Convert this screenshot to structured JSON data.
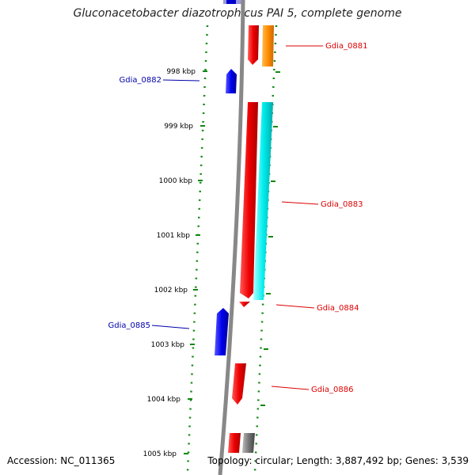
{
  "header": {
    "title": "Gluconacetobacter diazotrophicus PAI 5, complete genome"
  },
  "footer": {
    "accession": "Accession: NC_011365",
    "summary": "Topology: circular; Length: 3,887,492 bp; Genes: 3,539"
  },
  "scale": {
    "ticks": [
      "998 kbp",
      "999 kbp",
      "1000 kbp",
      "1001 kbp",
      "1002 kbp",
      "1003 kbp",
      "1004 kbp",
      "1005 kbp"
    ]
  },
  "genes": [
    {
      "name": "Gdia_0881",
      "strand": "reverse",
      "color": "#dd0000"
    },
    {
      "name": "Gdia_0882",
      "strand": "forward",
      "color": "#0000cc"
    },
    {
      "name": "Gdia_0883",
      "strand": "reverse",
      "color": "#dd0000"
    },
    {
      "name": "Gdia_0884",
      "strand": "reverse",
      "color": "#dd0000"
    },
    {
      "name": "Gdia_0885",
      "strand": "forward",
      "color": "#0000cc"
    },
    {
      "name": "Gdia_0886",
      "strand": "reverse",
      "color": "#dd0000"
    }
  ],
  "colors": {
    "backbone": "#888888",
    "tick_dots": "#118811",
    "orange_feature": "#ff8c00",
    "cyan_feature": "#00eeee",
    "grey_feature": "#777777"
  }
}
